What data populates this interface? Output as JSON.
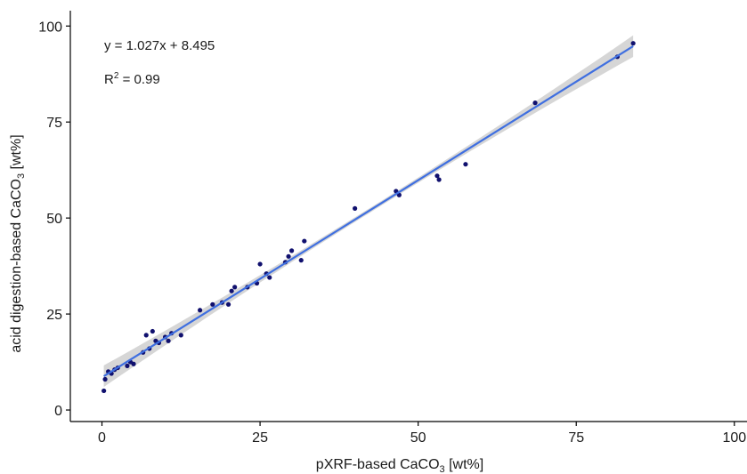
{
  "chart_data": {
    "type": "scatter",
    "title": "",
    "xlabel": "pXRF-based CaCO",
    "xlabel_sub": "3",
    "xlabel_unit": " [wt%]",
    "ylabel": "acid digestion-based CaCO",
    "ylabel_sub": "3",
    "ylabel_unit": " [wt%]",
    "xlim": [
      -5,
      102
    ],
    "ylim": [
      -3,
      104
    ],
    "xticks": [
      "0",
      "25",
      "50",
      "75",
      "100"
    ],
    "yticks": [
      "0",
      "25",
      "50",
      "75",
      "100"
    ],
    "grid": false,
    "legend": "none",
    "equation": "y = 1.027x + 8.495",
    "r2_label": "R",
    "r2_sup": "2",
    "r2_value": " = 0.99",
    "fit": {
      "slope": 1.027,
      "intercept": 8.495,
      "x_range": [
        0.3,
        84
      ]
    },
    "colors": {
      "points": "#10106e",
      "line": "#3f6fe0",
      "band": "#cfcfcf"
    },
    "points": {
      "x": [
        0.3,
        0.5,
        1.0,
        1.5,
        2.0,
        2.5,
        4.0,
        4.5,
        5.0,
        6.5,
        7.0,
        7.5,
        8.0,
        8.5,
        9.0,
        10.0,
        10.5,
        11.0,
        12.5,
        15.5,
        17.5,
        19.0,
        20.0,
        20.5,
        21.0,
        23.0,
        24.5,
        25.0,
        26.0,
        26.5,
        29.0,
        29.5,
        30.0,
        31.5,
        32.0,
        40.0,
        46.5,
        47.0,
        53.0,
        53.3,
        57.5,
        68.5,
        81.5,
        84.0
      ],
      "y": [
        5.0,
        8.0,
        10.0,
        9.5,
        10.5,
        11.0,
        11.5,
        12.5,
        12.0,
        15.0,
        19.5,
        16.0,
        20.5,
        18.0,
        17.5,
        19.0,
        18.0,
        20.0,
        19.5,
        26.0,
        27.5,
        28.0,
        27.5,
        31.0,
        32.0,
        32.0,
        33.0,
        38.0,
        35.5,
        34.5,
        38.5,
        40.0,
        41.5,
        39.0,
        44.0,
        52.5,
        57.0,
        56.0,
        61.0,
        60.0,
        64.0,
        80.0,
        92.0,
        95.5
      ]
    }
  }
}
